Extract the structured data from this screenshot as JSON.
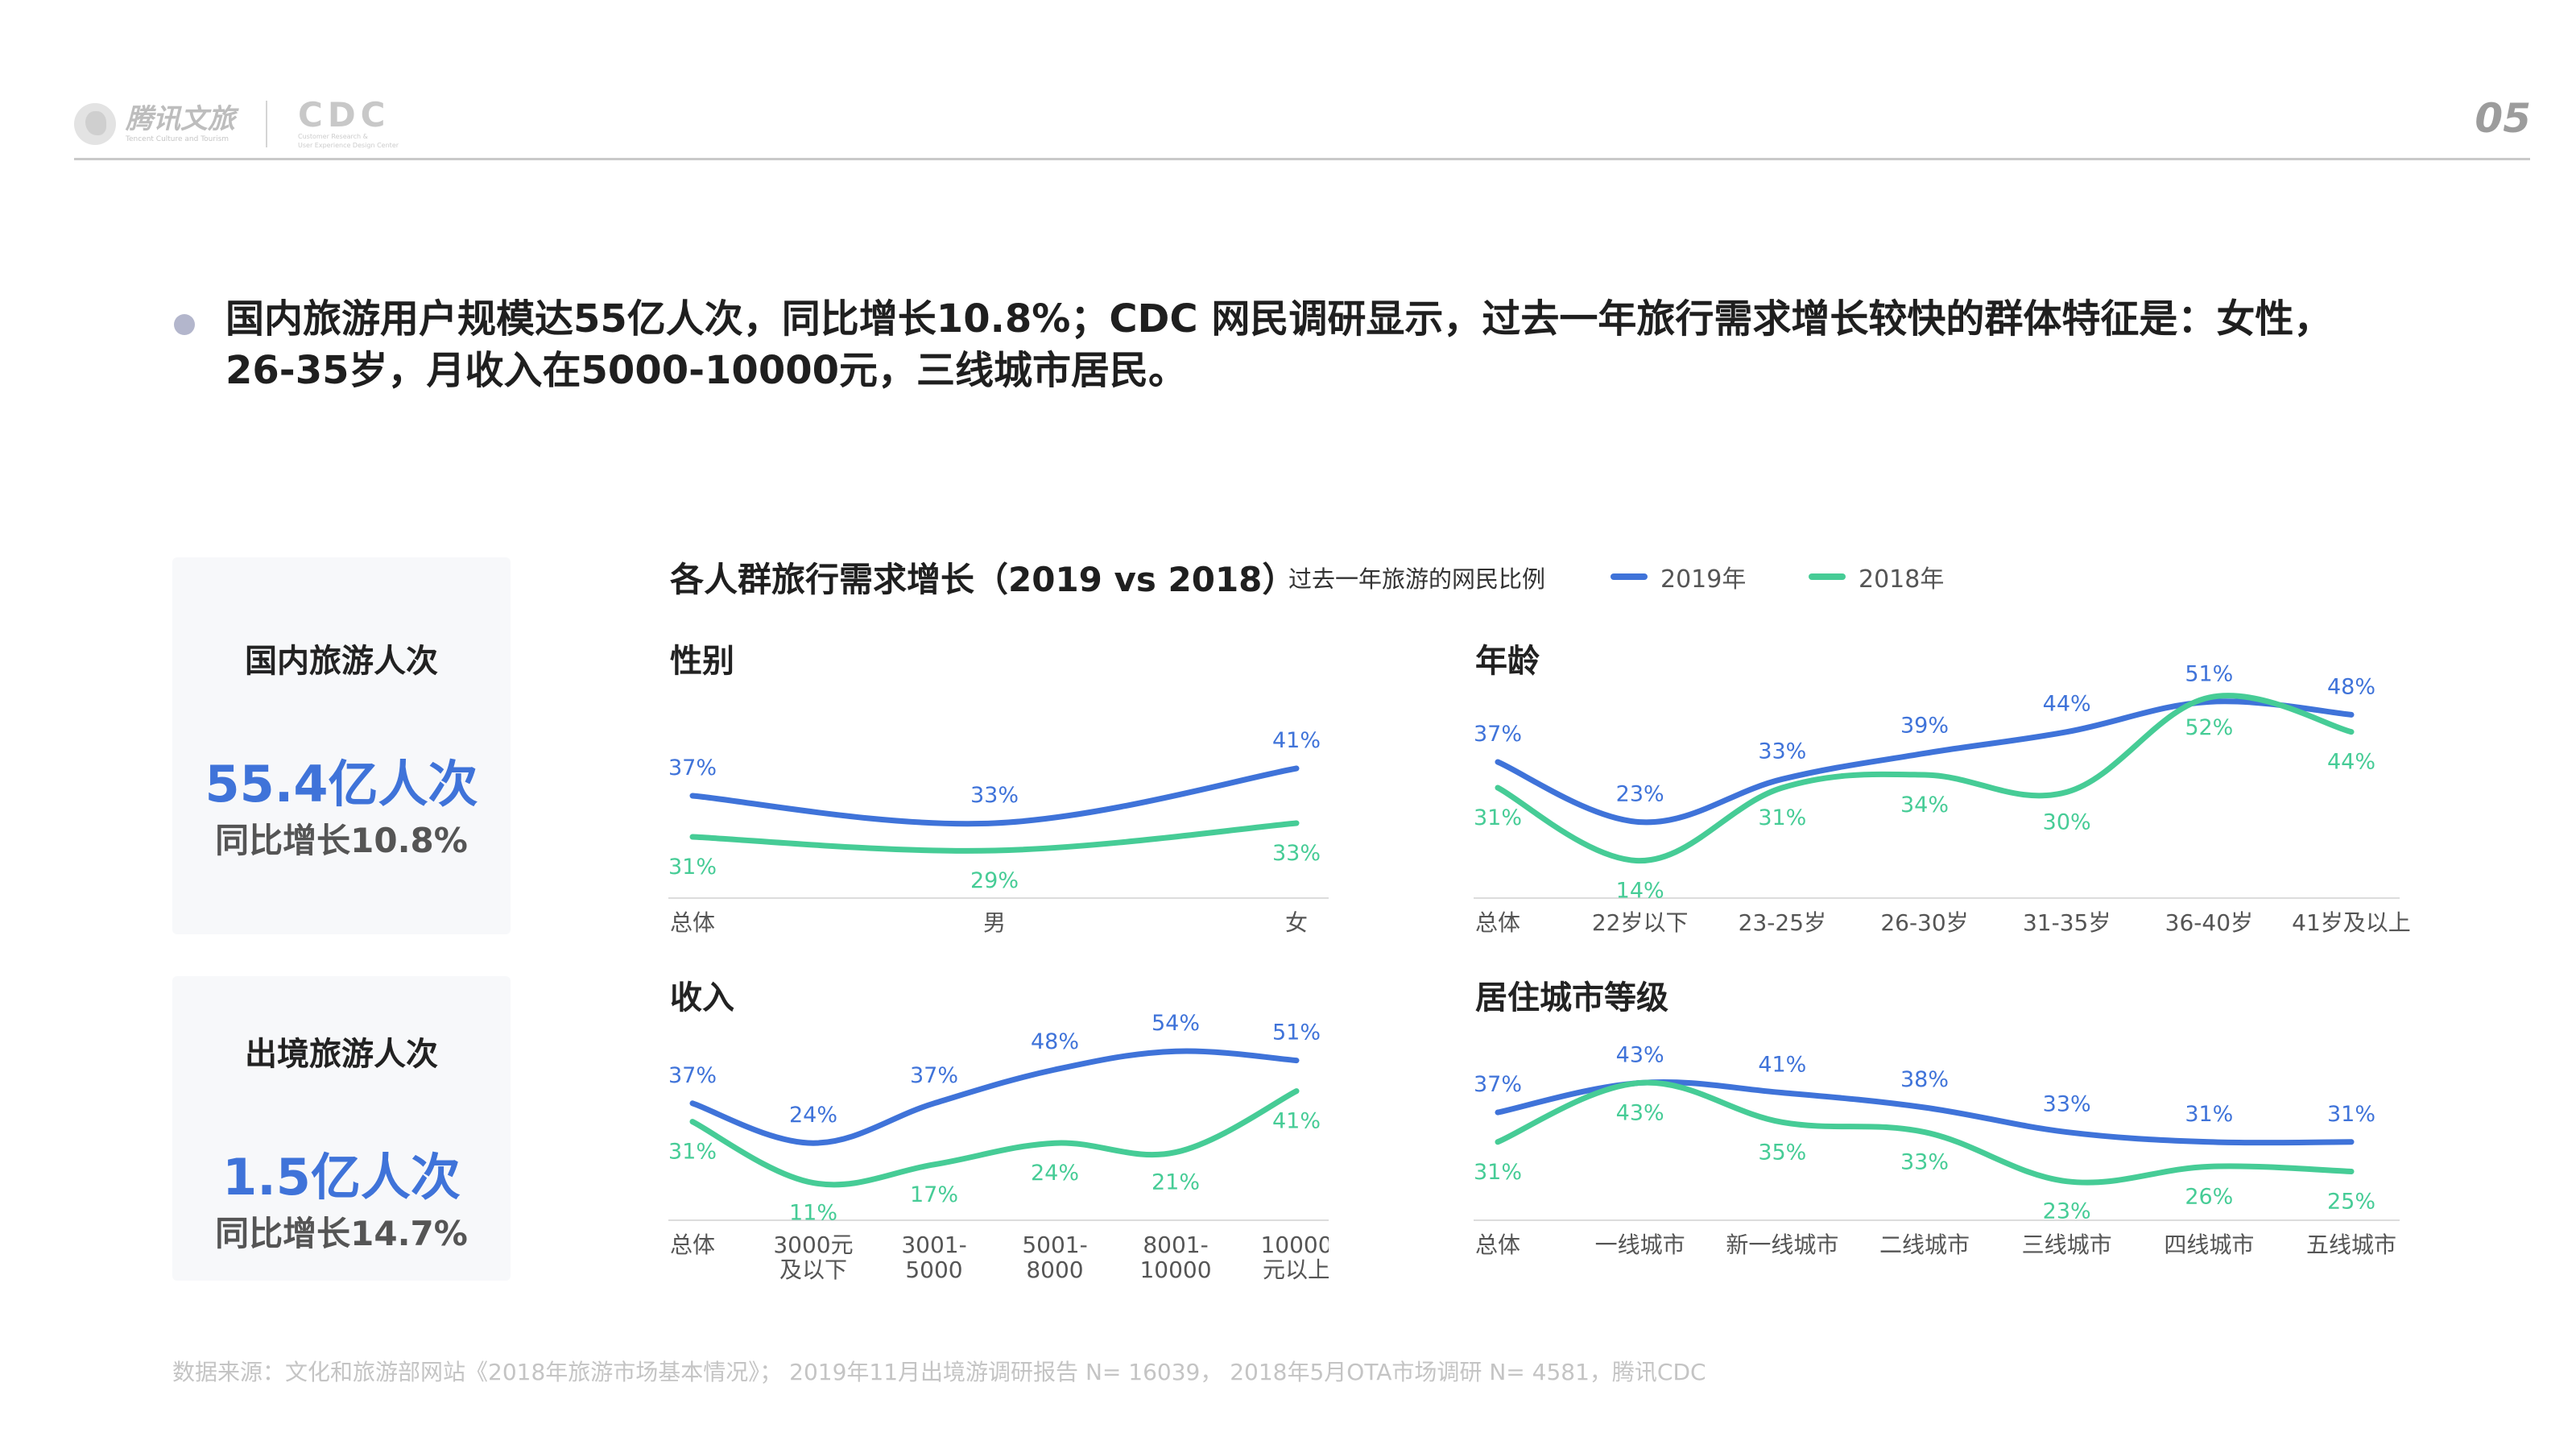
{
  "header": {
    "brand_main": "腾讯文旅",
    "brand_sub": "Tencent Culture and Tourism",
    "cdc_logo": "CDC",
    "cdc_sub1": "Customer Research &",
    "cdc_sub2": "User Experience Design Center",
    "page_number": "05"
  },
  "headline": "国内旅游用户规模达55亿人次，同比增长10.8%；CDC 网民调研显示，过去一年旅行需求增长较快的群体特征是：女性，26-35岁，月收入在5000-10000元，三线城市居民。",
  "stats": {
    "domestic": {
      "label": "国内旅游人次",
      "value": "55.4亿人次",
      "growth": "同比增长10.8%"
    },
    "outbound": {
      "label": "出境旅游人次",
      "value": "1.5亿人次",
      "growth": "同比增长14.7%"
    }
  },
  "chart_header": {
    "title": "各人群旅行需求增长（2019 vs 2018）",
    "legend_caption": "过去一年旅游的网民比例",
    "legend": [
      {
        "name": "2019年",
        "color": "#3f73d9"
      },
      {
        "name": "2018年",
        "color": "#46cc96"
      }
    ]
  },
  "chart_data": [
    {
      "type": "line",
      "title": "性别",
      "categories": [
        "总体",
        "男",
        "女"
      ],
      "series": [
        {
          "name": "2019年",
          "values": [
            37,
            33,
            41
          ],
          "color": "#3f73d9"
        },
        {
          "name": "2018年",
          "values": [
            31,
            29,
            33
          ],
          "color": "#46cc96"
        }
      ]
    },
    {
      "type": "line",
      "title": "年龄",
      "categories": [
        "总体",
        "22岁以下",
        "23-25岁",
        "26-30岁",
        "31-35岁",
        "36-40岁",
        "41岁及以上"
      ],
      "series": [
        {
          "name": "2019年",
          "values": [
            37,
            23,
            33,
            39,
            44,
            51,
            48
          ],
          "color": "#3f73d9"
        },
        {
          "name": "2018年",
          "values": [
            31,
            14,
            31,
            34,
            30,
            52,
            44
          ],
          "color": "#46cc96"
        }
      ]
    },
    {
      "type": "line",
      "title": "收入",
      "categories": [
        "总体",
        "3000元\n及以下",
        "3001-\n5000",
        "5001-\n8000",
        "8001-\n10000",
        "10000\n元以上"
      ],
      "series": [
        {
          "name": "2019年",
          "values": [
            37,
            24,
            37,
            48,
            54,
            51
          ],
          "color": "#3f73d9"
        },
        {
          "name": "2018年",
          "values": [
            31,
            11,
            17,
            24,
            21,
            41
          ],
          "color": "#46cc96"
        }
      ]
    },
    {
      "type": "line",
      "title": "居住城市等级",
      "categories": [
        "总体",
        "一线城市",
        "新一线城市",
        "二线城市",
        "三线城市",
        "四线城市",
        "五线城市"
      ],
      "series": [
        {
          "name": "2019年",
          "values": [
            37,
            43,
            41,
            38,
            33,
            31,
            31
          ],
          "color": "#3f73d9"
        },
        {
          "name": "2018年",
          "values": [
            31,
            43,
            35,
            33,
            23,
            26,
            25
          ],
          "color": "#46cc96"
        }
      ]
    }
  ],
  "footer": "数据来源：文化和旅游部网站《2018年旅游市场基本情况》； 2019年11月出境游调研报告 N= 16039， 2018年5月OTA市场调研 N= 4581，腾讯CDC"
}
